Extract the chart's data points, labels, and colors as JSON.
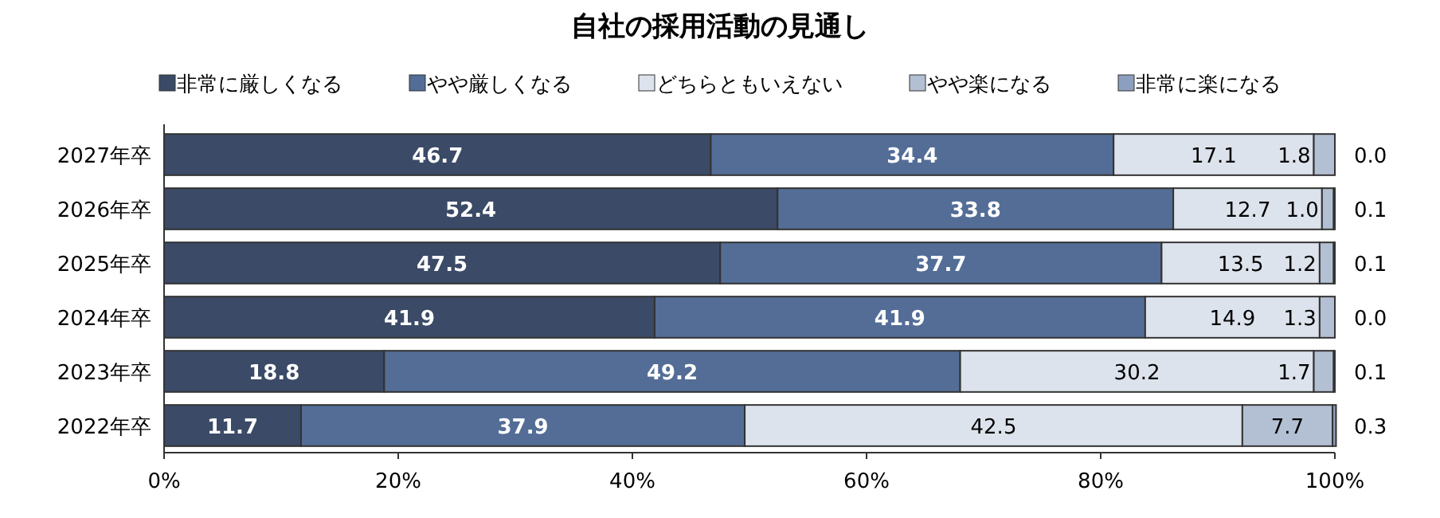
{
  "chart_data": {
    "type": "bar",
    "orientation": "horizontal",
    "stacked": true,
    "title": "自社の採用活動の見通し",
    "categories": [
      "2027年卒",
      "2026年卒",
      "2025年卒",
      "2024年卒",
      "2023年卒",
      "2022年卒"
    ],
    "series": [
      {
        "name": "非常に厳しくなる",
        "color": "#3b4a66",
        "values": [
          46.7,
          52.4,
          47.5,
          41.9,
          18.8,
          11.7
        ],
        "value_labels": [
          "46.7",
          "52.4",
          "47.5",
          "41.9",
          "18.8",
          "11.7"
        ]
      },
      {
        "name": "やや厳しくなる",
        "color": "#536d96",
        "values": [
          34.4,
          33.8,
          37.7,
          41.9,
          49.2,
          37.9
        ],
        "value_labels": [
          "34.4",
          "33.8",
          "37.7",
          "41.9",
          "49.2",
          "37.9"
        ]
      },
      {
        "name": "どちらともいえない",
        "color": "#dde3ec",
        "values": [
          17.1,
          12.7,
          13.5,
          14.9,
          30.2,
          42.5
        ],
        "value_labels": [
          "17.1",
          "12.7",
          "13.5",
          "14.9",
          "30.2",
          "42.5"
        ]
      },
      {
        "name": "やや楽になる",
        "color": "#b3bfd2",
        "values": [
          1.8,
          1.0,
          1.2,
          1.3,
          1.7,
          7.7
        ],
        "value_labels": [
          "1.8",
          "1.0",
          "1.2",
          "1.3",
          "1.7",
          "7.7"
        ]
      },
      {
        "name": "非常に楽になる",
        "color": "#8c9fbf",
        "values": [
          0.0,
          0.1,
          0.1,
          0.0,
          0.1,
          0.3
        ],
        "value_labels": [
          "0.0",
          "0.1",
          "0.1",
          "0.0",
          "0.1",
          "0.3"
        ]
      }
    ],
    "xlim": [
      0,
      100
    ],
    "xticks": [
      {
        "value": 0,
        "label": "0%"
      },
      {
        "value": 20,
        "label": "20%"
      },
      {
        "value": 40,
        "label": "40%"
      },
      {
        "value": 60,
        "label": "60%"
      },
      {
        "value": 80,
        "label": "80%"
      },
      {
        "value": 100,
        "label": "100%"
      }
    ],
    "legend": "top",
    "grid": false
  }
}
